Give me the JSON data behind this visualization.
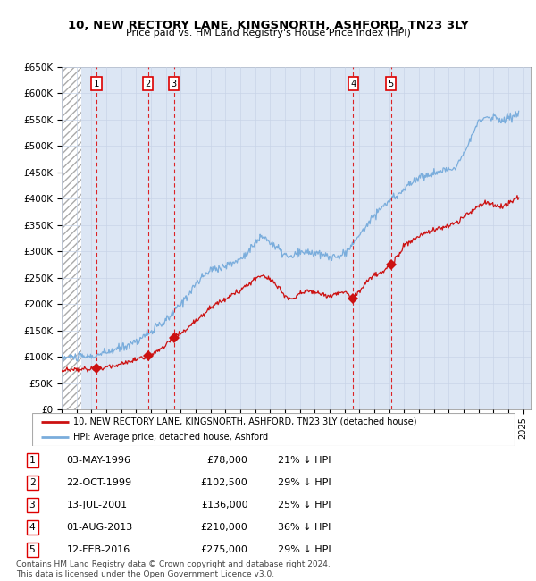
{
  "title": "10, NEW RECTORY LANE, KINGSNORTH, ASHFORD, TN23 3LY",
  "subtitle": "Price paid vs. HM Land Registry's House Price Index (HPI)",
  "transactions": [
    {
      "num": 1,
      "date": "03-MAY-1996",
      "year": 1996.35,
      "price": 78000,
      "pct": "21% ↓ HPI"
    },
    {
      "num": 2,
      "date": "22-OCT-1999",
      "year": 1999.8,
      "price": 102500,
      "pct": "29% ↓ HPI"
    },
    {
      "num": 3,
      "date": "13-JUL-2001",
      "year": 2001.53,
      "price": 136000,
      "pct": "25% ↓ HPI"
    },
    {
      "num": 4,
      "date": "01-AUG-2013",
      "year": 2013.58,
      "price": 210000,
      "pct": "36% ↓ HPI"
    },
    {
      "num": 5,
      "date": "12-FEB-2016",
      "year": 2016.12,
      "price": 275000,
      "pct": "29% ↓ HPI"
    }
  ],
  "legend_label_red": "10, NEW RECTORY LANE, KINGSNORTH, ASHFORD, TN23 3LY (detached house)",
  "legend_label_blue": "HPI: Average price, detached house, Ashford",
  "footer": "Contains HM Land Registry data © Crown copyright and database right 2024.\nThis data is licensed under the Open Government Licence v3.0.",
  "ylim": [
    0,
    650000
  ],
  "xlim_start": 1994.0,
  "xlim_end": 2025.5,
  "grid_color": "#c8d4e8",
  "plot_bg": "#dce6f4"
}
